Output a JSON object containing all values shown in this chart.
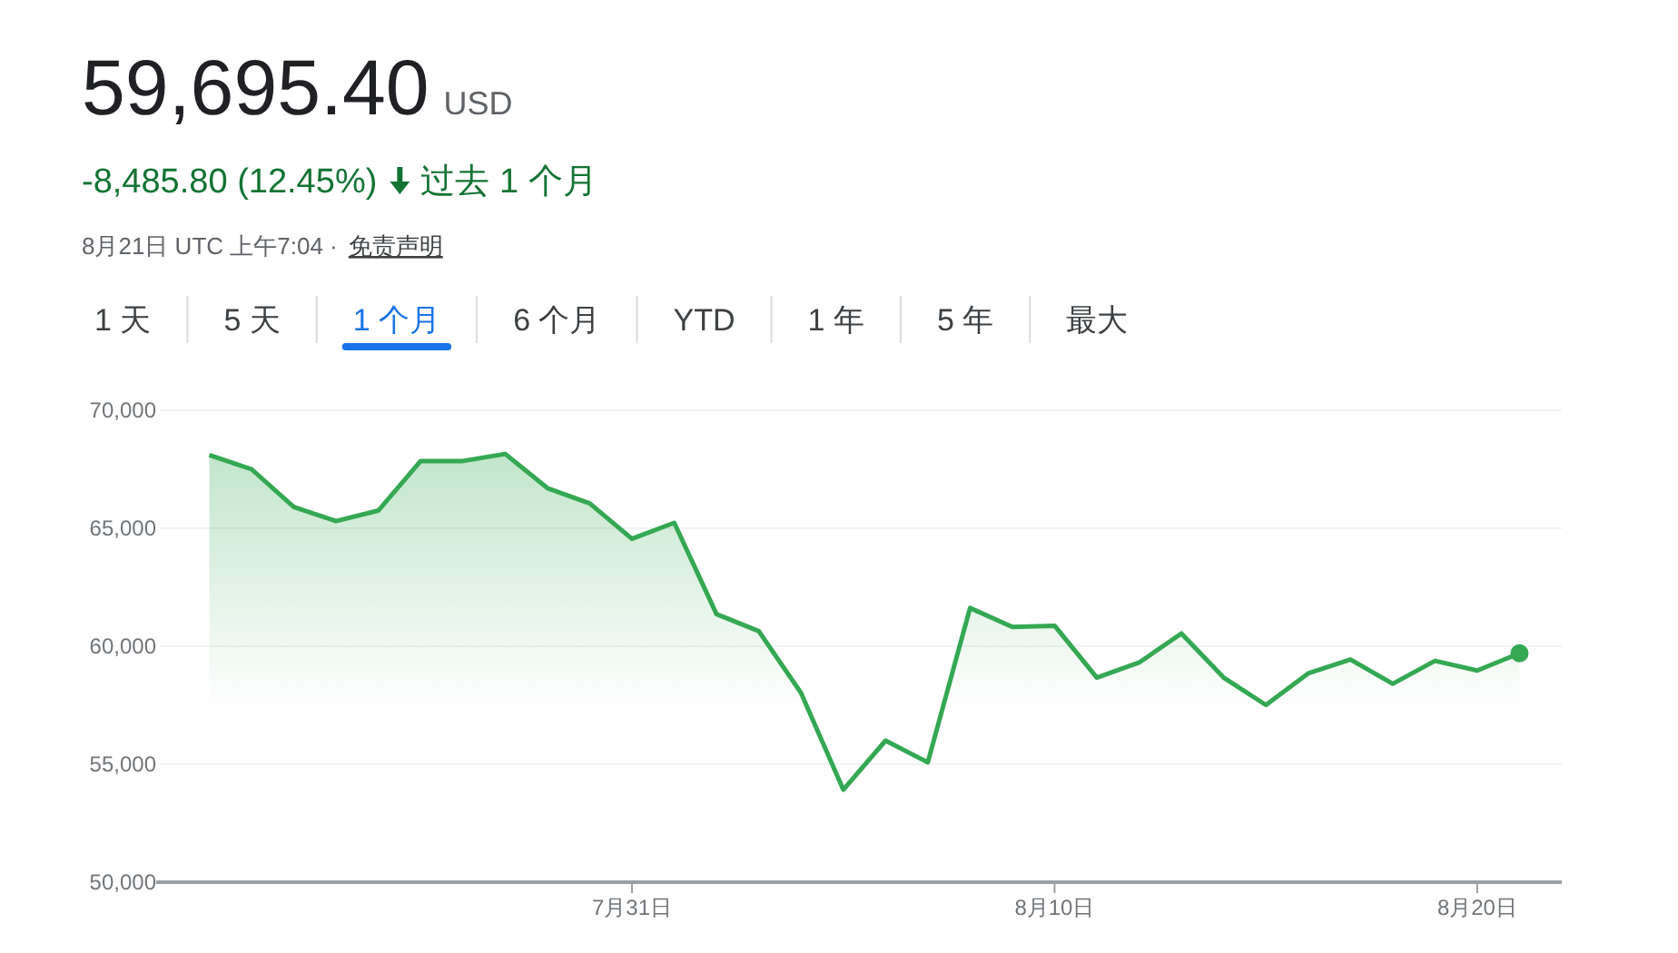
{
  "chart_data": {
    "type": "area",
    "title": "59,695.40",
    "subtitle": "-8,485.80 (12.45%)",
    "annotations": [
      "USD",
      "过去 1 个月",
      "8月21日 UTC 上午7:04 ·",
      "免责声明",
      "1 天",
      "5 天",
      "1 个月",
      "6 个月",
      "YTD",
      "1 年",
      "5 年",
      "最大"
    ],
    "x": [
      "--07-21",
      "--07-22",
      "--07-23",
      "--07-24",
      "--07-25",
      "--07-26",
      "--07-27",
      "--07-28",
      "--07-29",
      "--07-30",
      "--07-31",
      "--08-01",
      "--08-02",
      "--08-03",
      "--08-04",
      "--08-05",
      "--08-06",
      "--08-07",
      "--08-08",
      "--08-09",
      "--08-10",
      "--08-11",
      "--08-12",
      "--08-13",
      "--08-14",
      "--08-15",
      "--08-16",
      "--08-17",
      "--08-18",
      "--08-19",
      "--08-20",
      "--08-21"
    ],
    "series": [
      {
        "color": "#34a853",
        "values": [
          68100,
          67500,
          65900,
          65300,
          65750,
          67850,
          67850,
          68150,
          66700,
          66050,
          64550,
          65230,
          61360,
          60640,
          58020,
          53920,
          56000,
          55080,
          61620,
          60820,
          60870,
          58670,
          59310,
          60540,
          58670,
          57510,
          58850,
          59440,
          58410,
          59380,
          58970,
          59700
        ]
      }
    ],
    "xlim": [
      "--07-20",
      "--08-22"
    ],
    "xticks": [
      {
        "value": "--07-31",
        "label": "7月31日"
      },
      {
        "value": "--08-10",
        "label": "8月10日"
      },
      {
        "value": "--08-20",
        "label": "8月20日"
      }
    ],
    "ylim": [
      50000,
      70000
    ],
    "yticks": [
      {
        "value": 50000,
        "label": "50,000"
      },
      {
        "value": 55000,
        "label": "55,000"
      },
      {
        "value": 60000,
        "label": "60,000"
      },
      {
        "value": 65000,
        "label": "65,000"
      },
      {
        "value": 70000,
        "label": "70,000"
      }
    ],
    "grid": "y"
  }
}
